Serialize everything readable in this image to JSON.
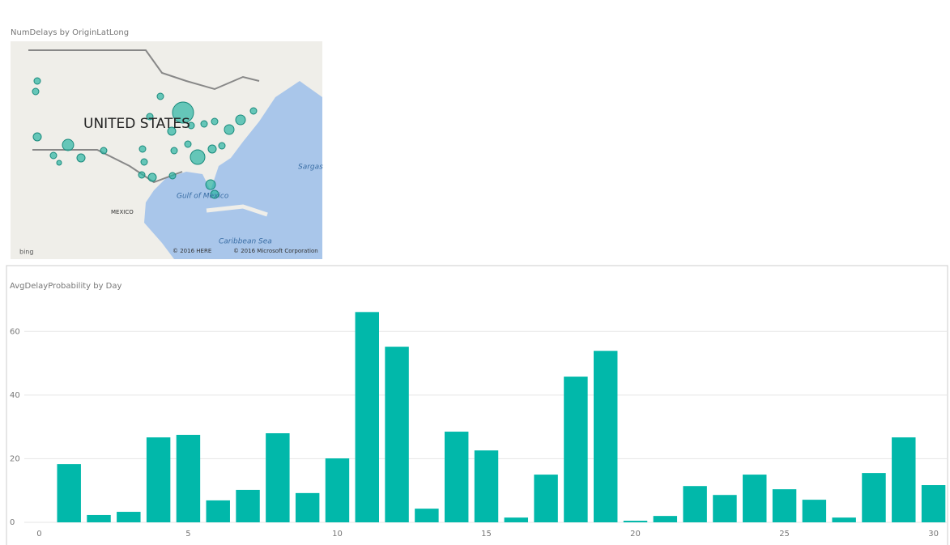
{
  "map": {
    "title": "NumDelays by OriginLatLong",
    "country_label": "UNITED STATES",
    "mexico_label": "MEXICO",
    "gulf_label": "Gulf of Mexico",
    "sargasso_label": "Sargas",
    "caribbean_label": "Caribbean Sea",
    "logo": "bing",
    "copyright_here": "© 2016 HERE",
    "copyright_ms": "© 2016 Microsoft Corporation"
  },
  "chart_data": {
    "type": "bar",
    "title": "AvgDelayProbability by Day",
    "x": [
      1,
      2,
      3,
      4,
      5,
      6,
      7,
      8,
      9,
      10,
      11,
      12,
      13,
      14,
      15,
      16,
      17,
      18,
      19,
      20,
      21,
      22,
      23,
      24,
      25,
      26,
      27,
      28,
      29,
      30
    ],
    "values": [
      18.3,
      2.3,
      3.3,
      26.7,
      27.5,
      6.9,
      10.2,
      28.0,
      9.2,
      20.1,
      66.1,
      55.2,
      4.3,
      28.5,
      22.6,
      1.5,
      15.0,
      45.8,
      53.9,
      0.5,
      2.0,
      11.4,
      8.6,
      15.0,
      10.4,
      7.1,
      1.5,
      15.5,
      26.7,
      11.7
    ],
    "color": "#01b8aa",
    "xlim": [
      -0.5,
      30.5
    ],
    "xticks": [
      0,
      5,
      10,
      15,
      20,
      25,
      30
    ],
    "ylim": [
      0,
      70
    ],
    "yticks": [
      0,
      20,
      40,
      60
    ],
    "grid": true
  }
}
